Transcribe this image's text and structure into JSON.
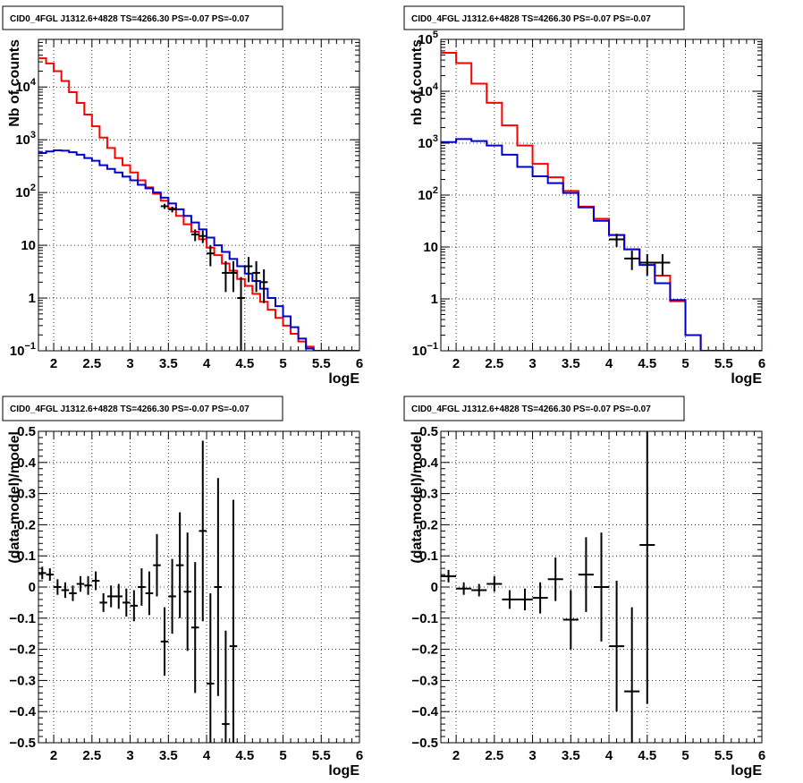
{
  "chart_data": [
    {
      "type": "line",
      "title": "CID0_4FGL J1312.6+4828 TS=4266.30 PS=-0.07 PS=-0.07",
      "xlabel": "logE",
      "ylabel": "Nb of counts",
      "xlim": [
        1.8,
        6.0
      ],
      "ylim": [
        0.1,
        80000
      ],
      "yscale": "log",
      "grid": true,
      "x_ticks": [
        "2",
        "2.5",
        "3",
        "3.5",
        "4",
        "4.5",
        "5",
        "5.5",
        "6"
      ],
      "y_ticks": [
        "10^-1",
        "1",
        "10",
        "10^2",
        "10^3",
        "10^4"
      ],
      "bin_edges": [
        1.8,
        1.9,
        2.0,
        2.1,
        2.2,
        2.3,
        2.4,
        2.5,
        2.6,
        2.7,
        2.8,
        2.9,
        3.0,
        3.1,
        3.2,
        3.3,
        3.4,
        3.5,
        3.6,
        3.7,
        3.8,
        3.9,
        4.0,
        4.1,
        4.2,
        4.3,
        4.4,
        4.5,
        4.6,
        4.7,
        4.8,
        4.9,
        5.0,
        5.1,
        5.2,
        5.3,
        5.4,
        5.5,
        5.6,
        5.7,
        5.8,
        5.9,
        6.0
      ],
      "series": [
        {
          "color": "#ff0000",
          "values": [
            35000,
            28000,
            20000,
            13000,
            8000,
            5000,
            3000,
            1800,
            1100,
            700,
            450,
            330,
            240,
            170,
            125,
            95,
            70,
            50,
            36,
            25,
            18,
            13,
            9,
            6.5,
            4.5,
            3.3,
            2.3,
            1.7,
            1.2,
            0.85,
            0.6,
            0.42,
            0.3,
            0.21,
            0.15,
            0.12,
            0.1,
            0.1,
            0.1,
            0.1,
            0.1,
            0.1
          ]
        },
        {
          "color": "#0000cc",
          "values": [
            560,
            600,
            630,
            620,
            580,
            520,
            450,
            400,
            330,
            280,
            240,
            200,
            170,
            140,
            120,
            100,
            80,
            62,
            48,
            36,
            27,
            20,
            14,
            10,
            7.5,
            5.5,
            4,
            2.9,
            2.1,
            1.5,
            1.0,
            0.7,
            0.45,
            0.28,
            0.17,
            0.11,
            0.1,
            0.1,
            0.1,
            0.1,
            0.1,
            0.1
          ]
        }
      ],
      "data_points": [
        {
          "x": 3.45,
          "y": 55,
          "err_lo": 6,
          "err_hi": 6
        },
        {
          "x": 3.55,
          "y": 48,
          "err_lo": 6,
          "err_hi": 6
        },
        {
          "x": 3.85,
          "y": 16,
          "err_lo": 4,
          "err_hi": 4
        },
        {
          "x": 3.95,
          "y": 15,
          "err_lo": 4,
          "err_hi": 4
        },
        {
          "x": 4.05,
          "y": 7,
          "err_lo": 3,
          "err_hi": 3
        },
        {
          "x": 4.25,
          "y": 3.0,
          "err_lo": 1.7,
          "err_hi": 2.0
        },
        {
          "x": 4.35,
          "y": 3.0,
          "err_lo": 1.7,
          "err_hi": 2.0
        },
        {
          "x": 4.45,
          "y": 1.0,
          "err_lo": 0.9,
          "err_hi": 1.5
        },
        {
          "x": 4.55,
          "y": 4.0,
          "err_lo": 2.0,
          "err_hi": 2.0
        },
        {
          "x": 4.65,
          "y": 3.0,
          "err_lo": 1.7,
          "err_hi": 2.0
        },
        {
          "x": 4.75,
          "y": 2.0,
          "err_lo": 1.2,
          "err_hi": 1.5
        }
      ]
    },
    {
      "type": "line",
      "title": "CID0_4FGL J1312.6+4828 TS=4266.30 PS=-0.07 PS=-0.07",
      "xlabel": "logE",
      "ylabel": "nb of counts",
      "xlim": [
        1.8,
        6.0
      ],
      "ylim": [
        0.1,
        100000
      ],
      "yscale": "log",
      "grid": true,
      "x_ticks": [
        "2",
        "2.5",
        "3",
        "3.5",
        "4",
        "4.5",
        "5",
        "5.5",
        "6"
      ],
      "y_ticks": [
        "10^-1",
        "1",
        "10",
        "10^2",
        "10^3",
        "10^4",
        "10^5"
      ],
      "bin_edges": [
        1.8,
        2.0,
        2.2,
        2.4,
        2.6,
        2.8,
        3.0,
        3.2,
        3.4,
        3.6,
        3.8,
        4.0,
        4.2,
        4.4,
        4.6,
        4.8,
        5.0,
        5.2,
        5.4,
        5.6,
        5.8,
        6.0
      ],
      "series": [
        {
          "color": "#ff0000",
          "values": [
            55000,
            35000,
            14000,
            6000,
            2200,
            900,
            400,
            220,
            120,
            60,
            35,
            17,
            9,
            5,
            2.8,
            0.9,
            0.2,
            0.1,
            0.1,
            0.1,
            0.1
          ]
        },
        {
          "color": "#0000cc",
          "values": [
            1050,
            1200,
            1100,
            900,
            600,
            350,
            230,
            170,
            110,
            58,
            32,
            17,
            9,
            4.5,
            2.0,
            0.95,
            0.2,
            0.1,
            0.1,
            0.1,
            0.1
          ]
        }
      ],
      "data_points": [
        {
          "x": 4.1,
          "y": 14,
          "err_lo": 4,
          "err_hi": 4
        },
        {
          "x": 4.3,
          "y": 6,
          "err_lo": 2.4,
          "err_hi": 2.5
        },
        {
          "x": 4.5,
          "y": 5,
          "err_lo": 2.2,
          "err_hi": 2.3
        },
        {
          "x": 4.7,
          "y": 5,
          "err_lo": 2.2,
          "err_hi": 2.3
        }
      ]
    },
    {
      "type": "scatter",
      "title": "CID0_4FGL J1312.6+4828 TS=4266.30 PS=-0.07 PS=-0.07",
      "xlabel": "logE",
      "ylabel": "(data-model)/model",
      "xlim": [
        1.8,
        6.0
      ],
      "ylim": [
        -0.5,
        0.5
      ],
      "grid": true,
      "x_ticks": [
        "2",
        "2.5",
        "3",
        "3.5",
        "4",
        "4.5",
        "5",
        "5.5",
        "6"
      ],
      "y_ticks": [
        "-0.5",
        "-0.4",
        "-0.3",
        "-0.2",
        "-0.1",
        "0",
        "0.1",
        "0.2",
        "0.3",
        "0.4",
        "0.5"
      ],
      "points": [
        {
          "x": 1.85,
          "y": 0.045,
          "err": 0.02,
          "xerr": 0.05
        },
        {
          "x": 1.95,
          "y": 0.04,
          "err": 0.02,
          "xerr": 0.05
        },
        {
          "x": 2.05,
          "y": 0.0,
          "err": 0.025,
          "xerr": 0.05
        },
        {
          "x": 2.15,
          "y": -0.01,
          "err": 0.025,
          "xerr": 0.05
        },
        {
          "x": 2.25,
          "y": -0.02,
          "err": 0.025,
          "xerr": 0.05
        },
        {
          "x": 2.35,
          "y": 0.01,
          "err": 0.025,
          "xerr": 0.05
        },
        {
          "x": 2.45,
          "y": 0.005,
          "err": 0.03,
          "xerr": 0.05
        },
        {
          "x": 2.55,
          "y": 0.02,
          "err": 0.03,
          "xerr": 0.05
        },
        {
          "x": 2.65,
          "y": -0.05,
          "err": 0.03,
          "xerr": 0.05
        },
        {
          "x": 2.75,
          "y": -0.03,
          "err": 0.035,
          "xerr": 0.05
        },
        {
          "x": 2.85,
          "y": -0.03,
          "err": 0.04,
          "xerr": 0.05
        },
        {
          "x": 2.95,
          "y": -0.05,
          "err": 0.045,
          "xerr": 0.05
        },
        {
          "x": 3.05,
          "y": -0.06,
          "err": 0.05,
          "xerr": 0.05
        },
        {
          "x": 3.15,
          "y": 0.0,
          "err": 0.06,
          "xerr": 0.05
        },
        {
          "x": 3.25,
          "y": -0.02,
          "err": 0.07,
          "xerr": 0.05
        },
        {
          "x": 3.35,
          "y": 0.07,
          "err": 0.1,
          "xerr": 0.05
        },
        {
          "x": 3.45,
          "y": -0.175,
          "err": 0.11,
          "xerr": 0.05
        },
        {
          "x": 3.55,
          "y": -0.03,
          "err": 0.12,
          "xerr": 0.05
        },
        {
          "x": 3.65,
          "y": 0.07,
          "err": 0.17,
          "xerr": 0.05
        },
        {
          "x": 3.75,
          "y": -0.015,
          "err": 0.19,
          "xerr": 0.05
        },
        {
          "x": 3.85,
          "y": -0.13,
          "err": 0.21,
          "xerr": 0.05
        },
        {
          "x": 3.95,
          "y": 0.18,
          "err": 0.29,
          "xerr": 0.05
        },
        {
          "x": 4.05,
          "y": -0.31,
          "err": 0.29,
          "xerr": 0.05
        },
        {
          "x": 4.15,
          "y": 0.0,
          "err": 0.35,
          "xerr": 0.05
        },
        {
          "x": 4.25,
          "y": -0.44,
          "err": 0.3,
          "xerr": 0.05
        },
        {
          "x": 4.35,
          "y": -0.19,
          "err": 0.47,
          "xerr": 0.05
        }
      ]
    },
    {
      "type": "scatter",
      "title": "CID0_4FGL J1312.6+4828 TS=4266.30 PS=-0.07 PS=-0.07",
      "xlabel": "logE",
      "ylabel": "(data-model)/model",
      "xlim": [
        1.8,
        6.0
      ],
      "ylim": [
        -0.5,
        0.5
      ],
      "grid": true,
      "x_ticks": [
        "2",
        "2.5",
        "3",
        "3.5",
        "4",
        "4.5",
        "5",
        "5.5",
        "6"
      ],
      "y_ticks": [
        "-0.5",
        "-0.4",
        "-0.3",
        "-0.2",
        "-0.1",
        "0",
        "0.1",
        "0.2",
        "0.3",
        "0.4",
        "0.5"
      ],
      "points": [
        {
          "x": 1.9,
          "y": 0.035,
          "err": 0.02,
          "xerr": 0.1
        },
        {
          "x": 2.1,
          "y": -0.005,
          "err": 0.02,
          "xerr": 0.1
        },
        {
          "x": 2.3,
          "y": -0.01,
          "err": 0.02,
          "xerr": 0.1
        },
        {
          "x": 2.5,
          "y": 0.01,
          "err": 0.025,
          "xerr": 0.1
        },
        {
          "x": 2.7,
          "y": -0.04,
          "err": 0.03,
          "xerr": 0.1
        },
        {
          "x": 2.9,
          "y": -0.04,
          "err": 0.035,
          "xerr": 0.1
        },
        {
          "x": 3.1,
          "y": -0.035,
          "err": 0.05,
          "xerr": 0.1
        },
        {
          "x": 3.3,
          "y": 0.025,
          "err": 0.07,
          "xerr": 0.1
        },
        {
          "x": 3.5,
          "y": -0.105,
          "err": 0.095,
          "xerr": 0.1
        },
        {
          "x": 3.7,
          "y": 0.04,
          "err": 0.12,
          "xerr": 0.1
        },
        {
          "x": 3.9,
          "y": 0.0,
          "err": 0.175,
          "xerr": 0.1
        },
        {
          "x": 4.1,
          "y": -0.19,
          "err": 0.21,
          "xerr": 0.1
        },
        {
          "x": 4.3,
          "y": -0.335,
          "err": 0.27,
          "xerr": 0.1
        },
        {
          "x": 4.5,
          "y": 0.135,
          "err": 0.51,
          "xerr": 0.1
        }
      ]
    }
  ]
}
